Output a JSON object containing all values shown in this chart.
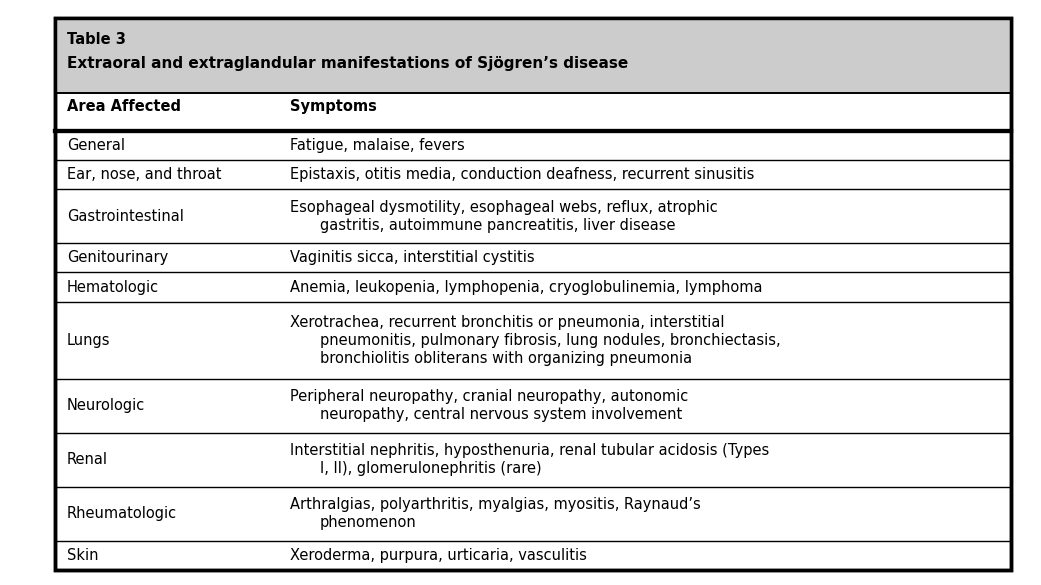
{
  "title_line1": "Table 3",
  "title_line2": "Extraoral and extraglandular manifestations of Sjögren’s disease",
  "header_bg": "#cccccc",
  "table_bg": "#ffffff",
  "outer_bg": "#ffffff",
  "border_color": "#000000",
  "col1_header": "Area Affected",
  "col2_header": "Symptoms",
  "rows": [
    {
      "area": "General",
      "symptoms_lines": [
        "Fatigue, malaise, fevers"
      ]
    },
    {
      "area": "Ear, nose, and throat",
      "symptoms_lines": [
        "Epistaxis, otitis media, conduction deafness, recurrent sinusitis"
      ]
    },
    {
      "area": "Gastrointestinal",
      "symptoms_lines": [
        "Esophageal dysmotility, esophageal webs, reflux, atrophic",
        "gastritis, autoimmune pancreatitis, liver disease"
      ]
    },
    {
      "area": "Genitourinary",
      "symptoms_lines": [
        "Vaginitis sicca, interstitial cystitis"
      ]
    },
    {
      "area": "Hematologic",
      "symptoms_lines": [
        "Anemia, leukopenia, lymphopenia, cryoglobulinemia, lymphoma"
      ]
    },
    {
      "area": "Lungs",
      "symptoms_lines": [
        "Xerotrachea, recurrent bronchitis or pneumonia, interstitial",
        "pneumonitis, pulmonary fibrosis, lung nodules, bronchiectasis,",
        "bronchiolitis obliterans with organizing pneumonia"
      ]
    },
    {
      "area": "Neurologic",
      "symptoms_lines": [
        "Peripheral neuropathy, cranial neuropathy, autonomic",
        "neuropathy, central nervous system involvement"
      ]
    },
    {
      "area": "Renal",
      "symptoms_lines": [
        "Interstitial nephritis, hyposthenuria, renal tubular acidosis (Types",
        "I, II), glomerulonephritis (rare)"
      ]
    },
    {
      "area": "Rheumatologic",
      "symptoms_lines": [
        "Arthralgias, polyarthritis, myalgias, myositis, Raynaud’s",
        "phenomenon"
      ]
    },
    {
      "area": "Skin",
      "symptoms_lines": [
        "Xeroderma, purpura, urticaria, vasculitis"
      ]
    }
  ],
  "figsize": [
    10.41,
    5.85
  ],
  "dpi": 100,
  "font_size": 10.5,
  "header_font_size": 10.5,
  "title1_font_size": 10.5,
  "title2_font_size": 11.0
}
